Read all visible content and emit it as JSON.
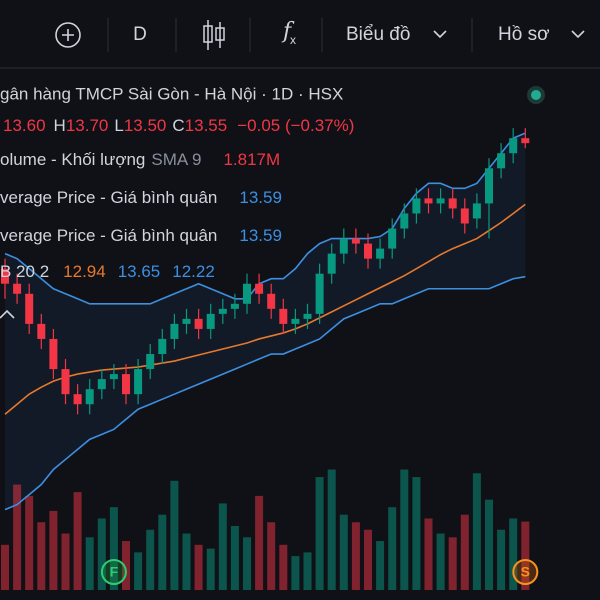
{
  "toolbar": {
    "interval": "D",
    "chart": "Biểu đồ",
    "profile": "Hồ sơ"
  },
  "chart_data": {
    "type": "candlestick",
    "title": "gân hàng TMCP Sài Gòn - Hà Nội · 1D · HSX",
    "legend": {
      "open": "13.60",
      "high_label": "H",
      "high": "13.70",
      "low_label": "L",
      "low": "13.50",
      "close_label": "C",
      "close": "13.55",
      "change": "−0.05 (−0.37%)",
      "volume_name": "olume - Khối lượng",
      "volume_sma": "SMA 9",
      "volume_value": "1.817M",
      "avg1_name": "verage Price - Giá bình quân",
      "avg1_value": "13.59",
      "avg2_name": "verage Price - Giá bình quân",
      "avg2_value": "13.59",
      "bb_name": "B 20 2",
      "bb_basis": "12.94",
      "bb_upper": "13.65",
      "bb_lower": "12.22"
    },
    "markers": [
      "F",
      "S"
    ],
    "up_color": "#089981",
    "down_color": "#f23645",
    "ylim": [
      9.0,
      13.98
    ],
    "vlim": [
      0,
      8.5
    ],
    "open": [
      12.3,
      12.15,
      12.05,
      11.75,
      11.6,
      11.3,
      11.05,
      10.95,
      11.1,
      11.2,
      11.25,
      11.05,
      11.3,
      11.45,
      11.6,
      11.75,
      11.8,
      11.7,
      11.85,
      11.9,
      11.95,
      12.15,
      12.05,
      11.9,
      11.75,
      11.8,
      11.85,
      12.25,
      12.45,
      12.6,
      12.55,
      12.4,
      12.5,
      12.7,
      12.85,
      13.0,
      12.95,
      13.0,
      12.9,
      12.8,
      12.95,
      13.3,
      13.45,
      13.6
    ],
    "high": [
      12.4,
      12.25,
      12.15,
      11.85,
      11.7,
      11.4,
      11.15,
      11.2,
      11.3,
      11.35,
      11.35,
      11.4,
      11.55,
      11.7,
      11.85,
      11.9,
      11.9,
      11.95,
      12.0,
      12.05,
      12.25,
      12.25,
      12.15,
      12.0,
      11.9,
      11.95,
      12.35,
      12.55,
      12.7,
      12.7,
      12.65,
      12.6,
      12.8,
      12.95,
      13.1,
      13.1,
      13.1,
      13.1,
      13.0,
      13.05,
      13.4,
      13.55,
      13.7,
      13.7
    ],
    "low": [
      12.0,
      11.95,
      11.65,
      11.5,
      11.2,
      10.95,
      10.85,
      10.85,
      11.0,
      11.1,
      10.95,
      10.95,
      11.2,
      11.35,
      11.5,
      11.65,
      11.6,
      11.6,
      11.75,
      11.8,
      11.85,
      11.95,
      11.8,
      11.65,
      11.65,
      11.7,
      11.75,
      12.15,
      12.35,
      12.45,
      12.3,
      12.3,
      12.4,
      12.6,
      12.75,
      12.85,
      12.85,
      12.8,
      12.65,
      12.7,
      12.6,
      13.2,
      13.35,
      13.5
    ],
    "close": [
      12.15,
      12.05,
      11.75,
      11.6,
      11.3,
      11.05,
      10.95,
      11.1,
      11.2,
      11.25,
      11.05,
      11.3,
      11.45,
      11.6,
      11.75,
      11.8,
      11.7,
      11.85,
      11.9,
      11.95,
      12.15,
      12.05,
      11.9,
      11.75,
      11.8,
      11.85,
      12.25,
      12.45,
      12.6,
      12.55,
      12.4,
      12.5,
      12.7,
      12.85,
      13.0,
      12.95,
      13.0,
      12.9,
      12.75,
      12.95,
      13.3,
      13.45,
      13.6,
      13.55
    ],
    "volume": [
      1.2,
      2.8,
      2.5,
      1.8,
      2.1,
      1.5,
      2.6,
      1.4,
      1.9,
      2.2,
      1.3,
      1.0,
      1.6,
      2.0,
      2.9,
      1.5,
      1.2,
      1.1,
      2.3,
      1.7,
      1.4,
      2.5,
      1.8,
      1.2,
      0.9,
      1.0,
      3.0,
      3.2,
      2.0,
      1.8,
      1.6,
      1.3,
      2.2,
      3.2,
      3.0,
      1.9,
      1.5,
      1.4,
      2.0,
      3.1,
      2.4,
      1.6,
      1.9,
      1.817
    ],
    "ma": {
      "color": "#e8782c",
      "values": [
        10.85,
        10.95,
        11.05,
        11.12,
        11.18,
        11.22,
        11.25,
        11.27,
        11.29,
        11.3,
        11.31,
        11.32,
        11.34,
        11.36,
        11.38,
        11.41,
        11.44,
        11.47,
        11.5,
        11.53,
        11.56,
        11.6,
        11.63,
        11.66,
        11.7,
        11.75,
        11.81,
        11.87,
        11.93,
        11.99,
        12.05,
        12.11,
        12.17,
        12.23,
        12.3,
        12.37,
        12.44,
        12.5,
        12.55,
        12.6,
        12.68,
        12.76,
        12.85,
        12.94
      ]
    },
    "bb_upper": {
      "color": "#3d8fe0",
      "values": [
        12.45,
        12.4,
        12.3,
        12.2,
        12.1,
        12.05,
        12.0,
        11.95,
        11.95,
        11.95,
        11.95,
        11.95,
        11.95,
        12.0,
        12.05,
        12.1,
        12.15,
        12.1,
        12.05,
        12.0,
        12.0,
        12.15,
        12.2,
        12.2,
        12.3,
        12.45,
        12.55,
        12.6,
        12.6,
        12.6,
        12.6,
        12.62,
        12.7,
        12.9,
        13.05,
        13.15,
        13.15,
        13.1,
        13.1,
        13.15,
        13.3,
        13.45,
        13.6,
        13.65
      ]
    },
    "bb_lower": {
      "color": "#3d8fe0",
      "values": [
        9.9,
        9.95,
        10.05,
        10.15,
        10.3,
        10.4,
        10.5,
        10.6,
        10.65,
        10.7,
        10.8,
        10.9,
        10.95,
        11.0,
        11.05,
        11.1,
        11.15,
        11.2,
        11.25,
        11.3,
        11.35,
        11.4,
        11.45,
        11.45,
        11.5,
        11.55,
        11.6,
        11.7,
        11.8,
        11.85,
        11.9,
        11.95,
        11.95,
        12.0,
        12.05,
        12.1,
        12.1,
        12.1,
        12.1,
        12.1,
        12.1,
        12.15,
        12.2,
        12.22
      ]
    }
  }
}
